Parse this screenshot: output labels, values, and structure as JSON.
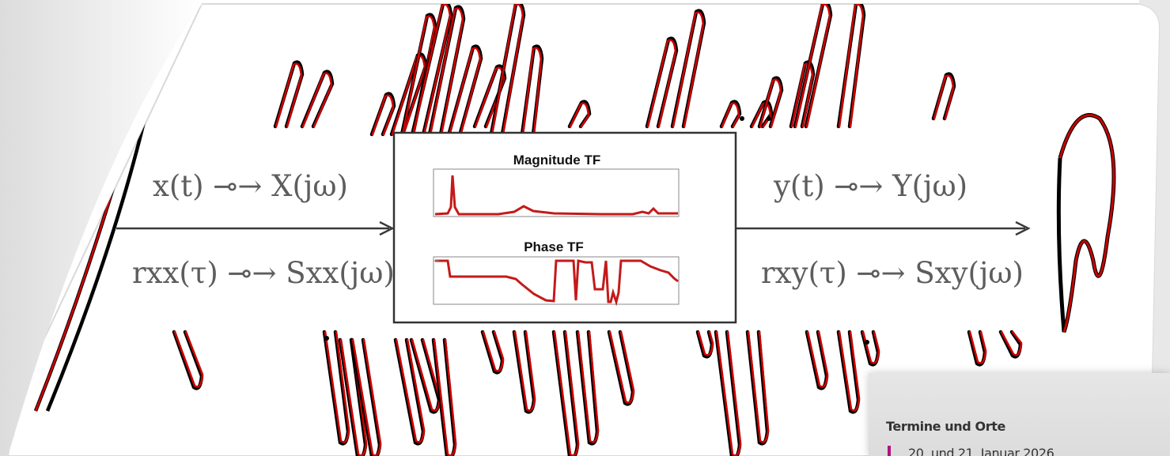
{
  "hero": {
    "input_signal_pair": "x(t) ⊸→ X(jω)",
    "input_correlation_pair": "rxx(τ) ⊸→ Sxx(jω)",
    "output_signal_pair": "y(t) ⊸→ Y(jω)",
    "output_correlation_pair": "rxy(τ) ⊸→ Sxy(jω)",
    "magnitude_title": "Magnitude TF",
    "phase_title": "Phase TF",
    "colors": {
      "trace_red": "#cc0000",
      "trace_black": "#000000",
      "text_gray": "#5d5d5d",
      "arrow": "#3a3a3a"
    }
  },
  "info_box": {
    "heading": "Termine und Orte",
    "first_date": "20. und 21. Januar 2026",
    "accent_color": "#b0127e"
  }
}
